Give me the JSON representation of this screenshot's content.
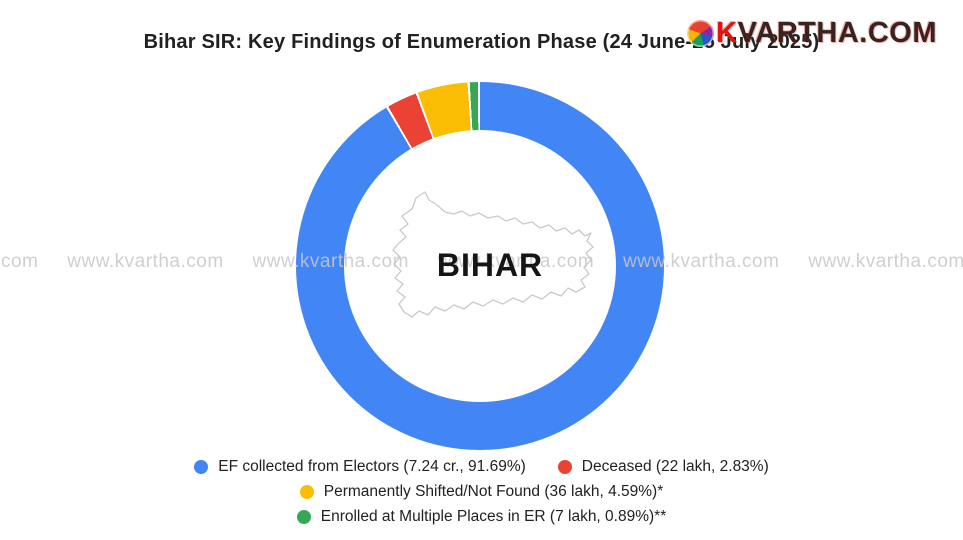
{
  "header": {
    "title": "Bihar SIR: Key Findings of Enumeration Phase (24 June-25 July 2025)"
  },
  "brand": {
    "k": "K",
    "rest": "VARTHA.COM"
  },
  "watermark": {
    "text": "www.kvartha.com",
    "repeat": 7
  },
  "chart_data": {
    "type": "pie",
    "subtype": "donut",
    "title": "Bihar SIR: Key Findings of Enumeration Phase (24 June-25 July 2025)",
    "center_label": "BIHAR",
    "center_graphic": "bihar-state-outline-map",
    "legend_position": "bottom",
    "start_angle_deg": 0,
    "direction": "clockwise",
    "slices": [
      {
        "name": "EF collected from Electors",
        "count": "7.24 cr.",
        "percent": 91.69,
        "color": "#4285F4",
        "label": "EF collected from Electors (7.24 cr., 91.69%)"
      },
      {
        "name": "Deceased",
        "count": "22 lakh",
        "percent": 2.83,
        "color": "#EA4335",
        "label": "Deceased (22 lakh, 2.83%)"
      },
      {
        "name": "Permanently Shifted/Not Found",
        "count": "36 lakh",
        "percent": 4.59,
        "color": "#FBBC04",
        "label": "Permanently Shifted/Not Found (36 lakh, 4.59%)*"
      },
      {
        "name": "Enrolled at Multiple Places in ER",
        "count": "7 lakh",
        "percent": 0.89,
        "color": "#34A853",
        "label": "Enrolled at Multiple Places in ER (7 lakh, 0.89%)**"
      }
    ],
    "legend_rows": [
      [
        0,
        1
      ],
      [
        2
      ],
      [
        3
      ]
    ]
  }
}
